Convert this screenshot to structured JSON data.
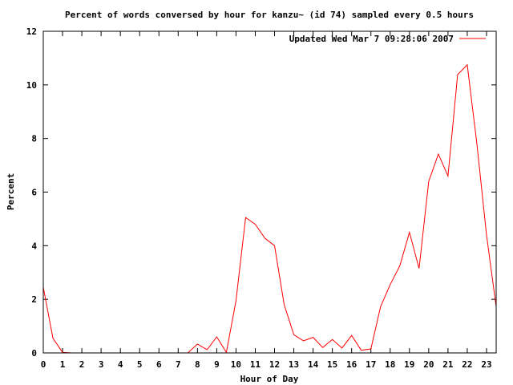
{
  "chart_data": {
    "type": "line",
    "title": "Percent of words conversed by hour for kanzu~ (id 74) sampled every 0.5 hours",
    "xlabel": "Hour of Day",
    "ylabel": "Percent",
    "xlim": [
      0,
      23.5
    ],
    "ylim": [
      0,
      12
    ],
    "xticks": [
      0,
      1,
      2,
      3,
      4,
      5,
      6,
      7,
      8,
      9,
      10,
      11,
      12,
      13,
      14,
      15,
      16,
      17,
      18,
      19,
      20,
      21,
      22,
      23
    ],
    "yticks": [
      0,
      2,
      4,
      6,
      8,
      10,
      12
    ],
    "grid": false,
    "legend": "top-right",
    "series": [
      {
        "name": "Updated Wed Mar  7 09:28:06 2007",
        "color": "#ff0000",
        "x": [
          0,
          0.5,
          1,
          1.5,
          2,
          2.5,
          3,
          3.5,
          4,
          4.5,
          5,
          5.5,
          6,
          6.5,
          7,
          7.5,
          8,
          8.5,
          9,
          9.5,
          10,
          10.5,
          11,
          11.5,
          12,
          12.5,
          13,
          13.5,
          14,
          14.5,
          15,
          15.5,
          16,
          16.5,
          17,
          17.5,
          18,
          18.5,
          19,
          19.5,
          20,
          20.5,
          21,
          21.5,
          22,
          22.5,
          23,
          23.5
        ],
        "y": [
          2.45,
          0.55,
          0.02,
          0,
          0,
          0,
          0,
          0,
          0,
          0,
          0,
          0,
          0,
          0,
          0,
          0,
          0.33,
          0.12,
          0.6,
          0.02,
          1.95,
          5.05,
          4.8,
          4.28,
          4.0,
          1.8,
          0.68,
          0.45,
          0.58,
          0.2,
          0.5,
          0.18,
          0.65,
          0.1,
          0.15,
          1.72,
          2.55,
          3.25,
          4.5,
          3.15,
          6.4,
          7.42,
          6.6,
          10.38,
          10.75,
          7.8,
          4.4,
          1.72
        ]
      }
    ]
  }
}
